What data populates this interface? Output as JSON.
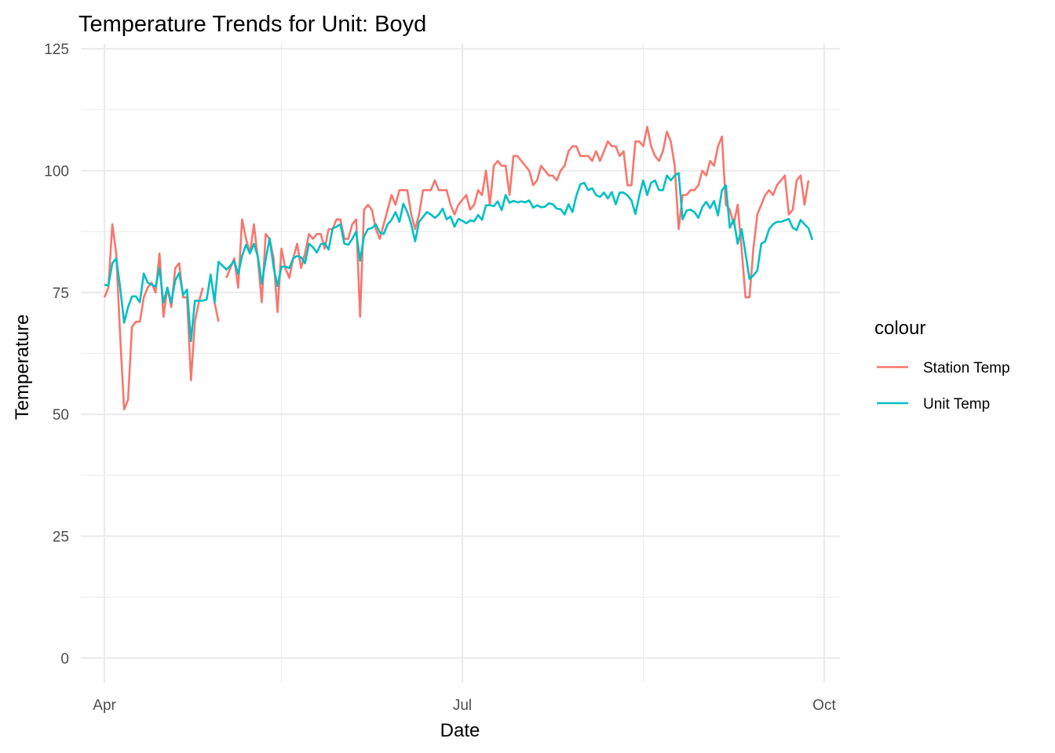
{
  "chart_data": {
    "type": "line",
    "title": "Temperature Trends for Unit: Boyd",
    "xlabel": "Date",
    "ylabel": "Temperature",
    "x_start": "2023-04-01",
    "x_end": "2023-09-30",
    "xlim": [
      "2023-03-26",
      "2023-10-05"
    ],
    "ylim": [
      -5,
      126
    ],
    "x_ticks": [
      {
        "label": "Apr",
        "date": "2023-04-01"
      },
      {
        "label": "Jul",
        "date": "2023-07-01"
      },
      {
        "label": "Oct",
        "date": "2023-10-01"
      }
    ],
    "x_minor_dates": [
      "2023-05-16",
      "2023-08-16"
    ],
    "y_ticks": [
      0,
      25,
      50,
      75,
      100,
      125
    ],
    "y_minor": [
      12.5,
      37.5,
      62.5,
      87.5,
      112.5
    ],
    "legend": {
      "title": "colour",
      "position": "right"
    },
    "grid": true,
    "series": [
      {
        "name": "Station Temp",
        "color": "#F8766D",
        "values": [
          74,
          76,
          89,
          83,
          66,
          51,
          53,
          68,
          69,
          69,
          74,
          76,
          77,
          75,
          83,
          70,
          76,
          72,
          80,
          81,
          74,
          74,
          57,
          69,
          73,
          76,
          null,
          null,
          73,
          69,
          null,
          78,
          80,
          82,
          76,
          90,
          86,
          83,
          89,
          82,
          73,
          87,
          86,
          82,
          71,
          84,
          80,
          78,
          82,
          85,
          80,
          83,
          87,
          86,
          87,
          87,
          84,
          88,
          88,
          90,
          90,
          86,
          86,
          89,
          90,
          70,
          92,
          93,
          92,
          88,
          86,
          89,
          92,
          95,
          93,
          96,
          96,
          96,
          91,
          88,
          91,
          96,
          96,
          96,
          98,
          96,
          96,
          96,
          93,
          91,
          93,
          94,
          95,
          92,
          93,
          96,
          95,
          100,
          93,
          101,
          102,
          101,
          101,
          95,
          103,
          103,
          102,
          101,
          100,
          97,
          98,
          101,
          100,
          99,
          99,
          98,
          100,
          101,
          104,
          105,
          105,
          103,
          103,
          103,
          102,
          104,
          102,
          104,
          106,
          105,
          105,
          103,
          104,
          97,
          97,
          106,
          106,
          105,
          109,
          105,
          103,
          102,
          104,
          108,
          106,
          101,
          88,
          95,
          95,
          96,
          96,
          97,
          100,
          99,
          102,
          101,
          105,
          107,
          93,
          92,
          89,
          93,
          84,
          74,
          74,
          84,
          91,
          93,
          95,
          96,
          95,
          97,
          98,
          99,
          91,
          92,
          98,
          99,
          93,
          98
        ],
        "values_note": ""
      },
      {
        "name": "Unit Temp",
        "color": "#00BFC4",
        "values": [
          76.6,
          76.4,
          81,
          82,
          76,
          68.8,
          72,
          74.2,
          74.2,
          73,
          78.9,
          77,
          76.6,
          76.2,
          80,
          72.9,
          76,
          72.9,
          77.5,
          79,
          74.5,
          75.6,
          65,
          73.3,
          73.3,
          73.3,
          73.6,
          78.7,
          73,
          81.3,
          80.5,
          79.7,
          80.5,
          81.5,
          78.8,
          82.5,
          84.8,
          83,
          85,
          82.4,
          76.8,
          81.8,
          86.1,
          80.2,
          76.3,
          80.3,
          80.3,
          80,
          82,
          82.5,
          82.2,
          81,
          85,
          84.3,
          83.2,
          84.9,
          85.1,
          83.8,
          88.1,
          88.5,
          89,
          85,
          84.8,
          86,
          87.5,
          81.5,
          86.5,
          88,
          88.2,
          89,
          87.3,
          87,
          89,
          89.9,
          91.5,
          89.5,
          93.2,
          91.5,
          89,
          85.5,
          89.5,
          90.5,
          91.5,
          91,
          90.3,
          91,
          92.2,
          90,
          90.6,
          88.5,
          90.1,
          89.7,
          89.2,
          89.8,
          89.6,
          90.9,
          89.9,
          92.9,
          92.9,
          92.7,
          93.7,
          91.9,
          95,
          93.4,
          93.8,
          93.5,
          93.7,
          93.5,
          93.9,
          92.4,
          92.9,
          92.5,
          92.6,
          93.3,
          93.1,
          92.2,
          92.1,
          91,
          93.1,
          91.5,
          94.9,
          97.2,
          97.5,
          96,
          96.4,
          95,
          94.6,
          95.5,
          94.3,
          95.6,
          93.1,
          95.5,
          95.5,
          94.9,
          93.9,
          91.1,
          94.9,
          98,
          95,
          97.5,
          98,
          96,
          96,
          99,
          98,
          99,
          99.5,
          90,
          91.8,
          92,
          91.5,
          90.3,
          92.5,
          93.6,
          92.3,
          93.8,
          90.8,
          96,
          97,
          88.3,
          90,
          85,
          88,
          83,
          77.8,
          78.5,
          79.5,
          85,
          85.5,
          88,
          89,
          89.5,
          89.5,
          89.8,
          90.1,
          88.3,
          87.8,
          89.9,
          89,
          88.2,
          85.8
        ]
      }
    ]
  }
}
